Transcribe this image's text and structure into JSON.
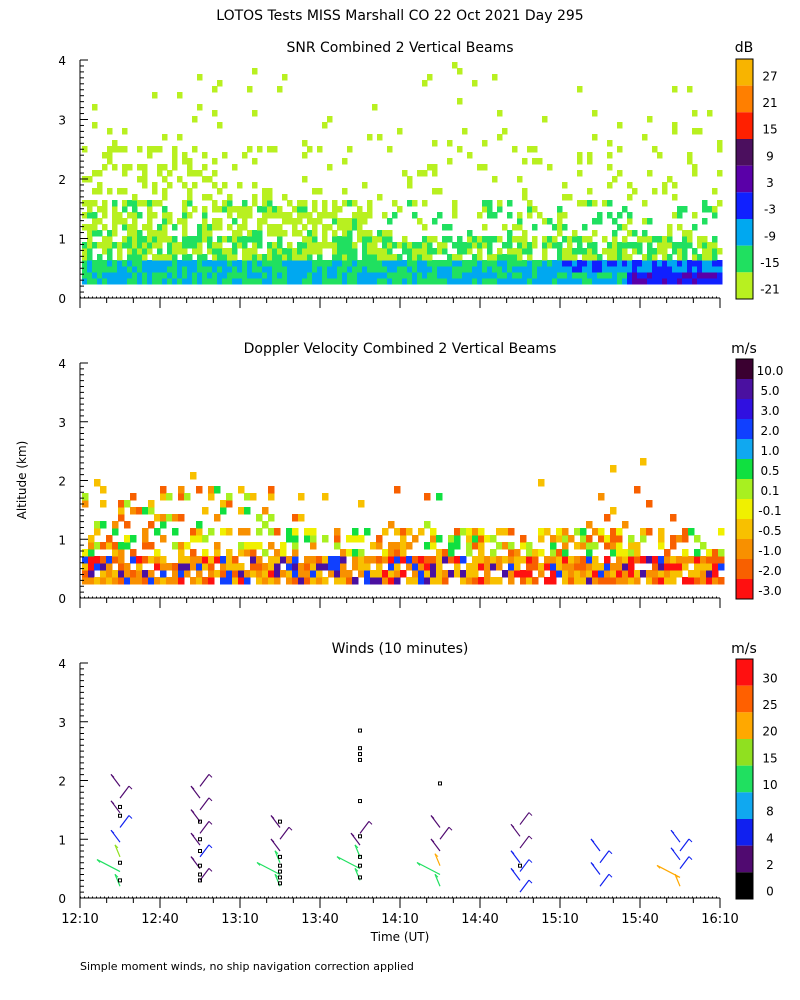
{
  "figure": {
    "title": "LOTOS Tests MISS Marshall CO  22 Oct 2021 Day 295",
    "ylabel": "Altitude (km)",
    "xlabel": "Time (UT)",
    "footnote": "Simple moment winds, no ship navigation correction applied",
    "x_ticks": [
      "12:10",
      "12:40",
      "13:10",
      "13:40",
      "14:10",
      "14:40",
      "15:10",
      "15:40",
      "16:10"
    ],
    "y_ticks": [
      "0",
      "1",
      "2",
      "3",
      "4"
    ]
  },
  "chart_data": [
    {
      "type": "heatmap",
      "title": "SNR Combined 2 Vertical Beams",
      "x_range": [
        "12:10",
        "16:10"
      ],
      "ylim": [
        0,
        4
      ],
      "colorbar": {
        "unit": "dB",
        "labels": [
          "27",
          "21",
          "15",
          "9",
          "3",
          "-3",
          "-9",
          "-15",
          "-21"
        ],
        "colors": [
          "#f8b400",
          "#ff7f00",
          "#ff2000",
          "#4b0f5e",
          "#5a00a8",
          "#1020ff",
          "#00a8f0",
          "#20e060",
          "#b8f020"
        ]
      }
    },
    {
      "type": "heatmap",
      "title": "Doppler Velocity Combined 2 Vertical Beams",
      "x_range": [
        "12:10",
        "16:10"
      ],
      "ylim": [
        0,
        4
      ],
      "colorbar": {
        "unit": "m/s",
        "labels": [
          "10.0",
          "5.0",
          "3.0",
          "2.0",
          "1.0",
          "0.5",
          "0.1",
          "-0.1",
          "-0.5",
          "-1.0",
          "-2.0",
          "-3.0"
        ],
        "colors": [
          "#3a0030",
          "#4a10a0",
          "#3010e0",
          "#1040ff",
          "#10a8f0",
          "#10e040",
          "#a8f020",
          "#f0f000",
          "#f8c000",
          "#f89000",
          "#f86000",
          "#ff1010"
        ]
      }
    },
    {
      "type": "scatter",
      "title": "Winds (10 minutes)",
      "x_range": [
        "12:10",
        "16:10"
      ],
      "ylim": [
        0,
        4
      ],
      "colorbar": {
        "unit": "m/s",
        "labels": [
          "30",
          "25",
          "20",
          "15",
          "10",
          "8",
          "4",
          "2",
          "0"
        ],
        "colors": [
          "#ff1010",
          "#ff6000",
          "#ffa800",
          "#90e020",
          "#20e060",
          "#10a8f0",
          "#1020f0",
          "#500a70",
          "#000000"
        ]
      },
      "profiles": [
        {
          "time": "12:25",
          "heights_km": [
            0.2,
            0.45,
            0.7,
            0.95,
            1.2,
            1.45,
            1.7,
            1.9
          ],
          "speeds_ms": [
            12,
            14,
            16,
            5,
            4,
            3,
            3,
            3
          ]
        },
        {
          "time": "12:55",
          "heights_km": [
            0.3,
            0.5,
            0.7,
            0.9,
            1.1,
            1.3,
            1.5,
            1.7,
            1.9
          ],
          "speeds_ms": [
            3,
            3,
            4,
            3,
            3,
            3,
            3,
            3,
            3
          ]
        },
        {
          "time": "13:25",
          "heights_km": [
            0.2,
            0.4,
            0.6,
            0.8,
            1.0,
            1.2
          ],
          "speeds_ms": [
            12,
            13,
            12,
            3,
            3,
            3
          ]
        },
        {
          "time": "13:55",
          "heights_km": [
            0.3,
            0.5,
            0.7,
            0.9,
            1.1
          ],
          "speeds_ms": [
            14,
            13,
            12,
            3,
            3
          ]
        },
        {
          "time": "14:25",
          "heights_km": [
            0.2,
            0.4,
            0.55,
            0.8,
            1.0,
            1.2
          ],
          "speeds_ms": [
            13,
            12,
            20,
            3,
            3,
            3
          ]
        },
        {
          "time": "14:55",
          "heights_km": [
            0.1,
            0.3,
            0.45,
            0.6,
            0.85,
            1.05,
            1.25
          ],
          "speeds_ms": [
            4,
            4,
            4,
            4,
            3,
            3,
            3
          ]
        },
        {
          "time": "15:25",
          "heights_km": [
            0.2,
            0.4,
            0.6,
            0.8
          ],
          "speeds_ms": [
            5,
            5,
            5,
            5
          ]
        },
        {
          "time": "15:55",
          "heights_km": [
            0.2,
            0.35,
            0.5,
            0.65,
            0.8,
            0.95
          ],
          "speeds_ms": [
            20,
            22,
            6,
            6,
            6,
            6
          ]
        }
      ],
      "missing_points": [
        {
          "time": "12:25",
          "heights_km": [
            0.3,
            0.6,
            1.4,
            1.55
          ]
        },
        {
          "time": "12:55",
          "heights_km": [
            0.3,
            0.4,
            0.55,
            0.8,
            1.0,
            1.3
          ]
        },
        {
          "time": "13:25",
          "heights_km": [
            0.25,
            0.35,
            0.45,
            0.55,
            0.7,
            1.3
          ]
        },
        {
          "time": "13:55",
          "heights_km": [
            0.35,
            0.55,
            0.7,
            1.05,
            1.65,
            2.35,
            2.45,
            2.55,
            2.85
          ]
        },
        {
          "time": "14:25",
          "heights_km": [
            1.95
          ]
        },
        {
          "time": "14:55",
          "heights_km": [
            0.55
          ]
        }
      ]
    }
  ]
}
